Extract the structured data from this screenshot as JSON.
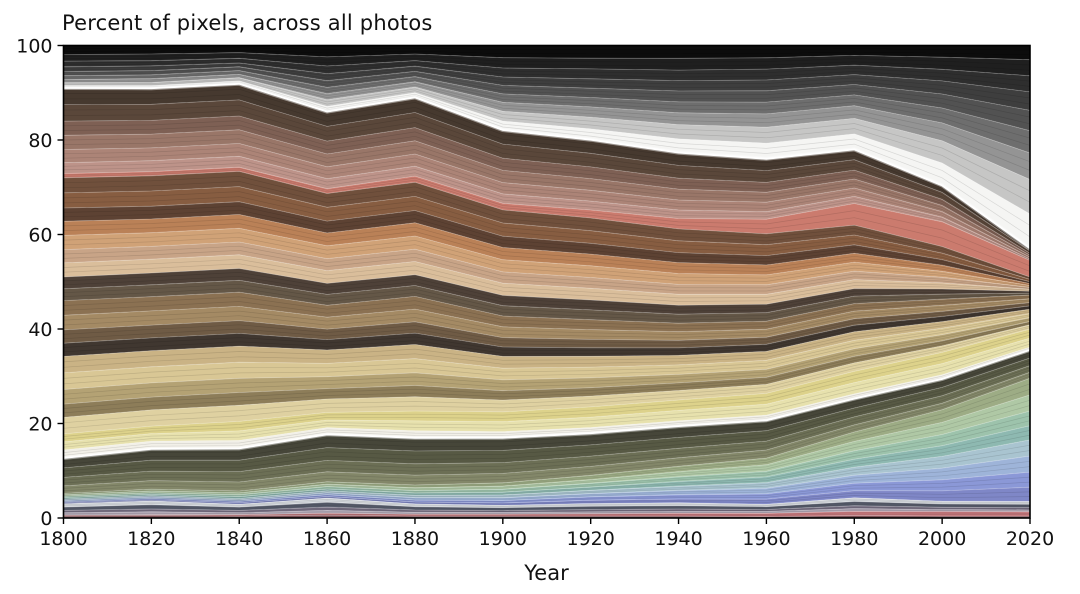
{
  "title": "Percent of pixels, across all photos",
  "x_axis": {
    "label": "Year",
    "ticks": [
      1800,
      1820,
      1840,
      1860,
      1880,
      1900,
      1920,
      1940,
      1960,
      1980,
      2000,
      2020
    ]
  },
  "y_axis": {
    "ticks": [
      0,
      20,
      40,
      60,
      80,
      100
    ],
    "range": [
      0,
      100
    ]
  },
  "chart_data": {
    "type": "area",
    "stacked": true,
    "normalized_to_100": true,
    "title": "Percent of pixels, across all photos",
    "xlabel": "Year",
    "ylabel": "",
    "xlim": [
      1800,
      2020
    ],
    "ylim": [
      0,
      100
    ],
    "grid": false,
    "legend": "none",
    "x": [
      1800,
      1820,
      1840,
      1860,
      1880,
      1900,
      1920,
      1940,
      1960,
      1980,
      2000,
      2020
    ],
    "series_order": "top-to-bottom",
    "series": [
      {
        "name": "black",
        "color": "#0c0c0c",
        "values": [
          1.9,
          1.8,
          1.5,
          2.4,
          1.8,
          2.6,
          2.7,
          2.7,
          2.6,
          2.1,
          2.5,
          3.0
        ]
      },
      {
        "name": "gray-darkest",
        "color": "#1f1f1f",
        "values": [
          1.4,
          1.4,
          1.2,
          1.9,
          1.4,
          2.2,
          2.3,
          2.5,
          2.4,
          2.1,
          2.6,
          3.4
        ]
      },
      {
        "name": "gray-darker",
        "color": "#2e2e2e",
        "values": [
          1.2,
          1.1,
          1.0,
          1.6,
          1.2,
          1.9,
          2.1,
          2.2,
          2.3,
          2.0,
          2.5,
          3.4
        ]
      },
      {
        "name": "gray-dark",
        "color": "#3e3e3e",
        "values": [
          1.0,
          1.0,
          0.8,
          1.5,
          1.1,
          1.8,
          2.0,
          2.2,
          2.3,
          2.1,
          2.8,
          3.9
        ]
      },
      {
        "name": "gray-mid",
        "color": "#525252",
        "values": [
          0.9,
          0.9,
          0.8,
          1.4,
          1.1,
          1.8,
          2.0,
          2.3,
          2.4,
          2.2,
          3.0,
          4.3
        ]
      },
      {
        "name": "gray",
        "color": "#6e6e6e",
        "values": [
          0.8,
          0.8,
          0.8,
          1.3,
          1.1,
          1.8,
          2.0,
          2.3,
          2.5,
          2.3,
          3.2,
          4.7
        ]
      },
      {
        "name": "gray-light",
        "color": "#949494",
        "values": [
          0.7,
          0.8,
          0.7,
          1.3,
          1.1,
          1.9,
          2.2,
          2.5,
          2.8,
          2.7,
          3.8,
          5.6
        ]
      },
      {
        "name": "gray-lighter",
        "color": "#c6c6c5",
        "values": [
          0.6,
          0.7,
          0.7,
          1.4,
          1.2,
          2.1,
          2.5,
          3.0,
          3.4,
          3.3,
          4.8,
          7.3
        ]
      },
      {
        "name": "white-ridge",
        "color": "#f5f5f3",
        "values": [
          0.5,
          0.5,
          0.6,
          1.1,
          1.0,
          1.9,
          2.3,
          2.9,
          3.3,
          3.3,
          4.8,
          7.3
        ]
      },
      {
        "name": "taupe-dark",
        "color": "#46392f",
        "values": [
          3.5,
          3.4,
          3.4,
          3.1,
          3.2,
          3.0,
          2.9,
          2.7,
          2.5,
          2.2,
          1.5,
          0.5
        ]
      },
      {
        "name": "taupe",
        "color": "#5a473a",
        "values": [
          3.5,
          3.4,
          3.4,
          3.1,
          3.2,
          3.0,
          2.9,
          2.7,
          2.5,
          2.2,
          1.5,
          0.5
        ]
      },
      {
        "name": "rose-brown",
        "color": "#7e6054",
        "values": [
          3.0,
          2.9,
          2.9,
          2.7,
          2.8,
          2.6,
          2.5,
          2.3,
          2.1,
          1.9,
          1.3,
          0.4
        ]
      },
      {
        "name": "mauve",
        "color": "#997668",
        "values": [
          3.0,
          2.9,
          2.9,
          2.7,
          2.8,
          2.6,
          2.5,
          2.3,
          2.1,
          1.9,
          1.3,
          0.4
        ]
      },
      {
        "name": "rosy-brown",
        "color": "#ac8477",
        "values": [
          2.8,
          2.7,
          2.7,
          2.5,
          2.6,
          2.4,
          2.3,
          2.1,
          2.0,
          1.8,
          1.2,
          0.4
        ]
      },
      {
        "name": "dusty-pink",
        "color": "#bd9389",
        "values": [
          2.3,
          2.3,
          2.3,
          2.1,
          2.1,
          2.0,
          1.9,
          1.8,
          1.6,
          1.5,
          1.0,
          0.3
        ]
      },
      {
        "name": "salmon-red",
        "color": "#cb7b6e",
        "values": [
          0.9,
          0.9,
          0.9,
          1.0,
          1.3,
          1.4,
          1.7,
          2.2,
          3.1,
          4.6,
          5.3,
          3.5
        ]
      },
      {
        "name": "brown",
        "color": "#70503c",
        "values": [
          3.2,
          3.2,
          3.2,
          2.9,
          3.0,
          2.8,
          2.7,
          2.5,
          2.3,
          2.1,
          1.4,
          0.5
        ]
      },
      {
        "name": "sienna",
        "color": "#875d41",
        "values": [
          3.2,
          3.2,
          3.2,
          2.9,
          3.0,
          2.8,
          2.7,
          2.5,
          2.3,
          2.1,
          1.4,
          0.5
        ]
      },
      {
        "name": "brown-dark",
        "color": "#5d4233",
        "values": [
          2.8,
          2.7,
          2.7,
          2.5,
          2.6,
          2.4,
          2.3,
          2.1,
          2.0,
          1.8,
          1.2,
          0.4
        ]
      },
      {
        "name": "orange-tan",
        "color": "#ba8157",
        "values": [
          3.0,
          2.9,
          2.9,
          2.7,
          2.8,
          2.6,
          2.5,
          2.3,
          2.1,
          1.9,
          1.3,
          0.4
        ]
      },
      {
        "name": "peach",
        "color": "#d0a277",
        "values": [
          3.0,
          2.9,
          2.9,
          2.7,
          2.8,
          2.6,
          2.5,
          2.3,
          2.1,
          1.9,
          1.3,
          0.4
        ]
      },
      {
        "name": "buff",
        "color": "#c8a487",
        "values": [
          2.8,
          2.7,
          2.7,
          2.5,
          2.6,
          2.4,
          2.3,
          2.1,
          2.0,
          1.8,
          1.2,
          0.4
        ]
      },
      {
        "name": "pale-tan",
        "color": "#dabe9b",
        "values": [
          3.0,
          2.9,
          2.9,
          2.7,
          2.8,
          2.6,
          2.5,
          2.3,
          2.1,
          1.9,
          1.3,
          0.4
        ]
      },
      {
        "name": "umber-dark",
        "color": "#4e4138",
        "values": [
          2.5,
          2.5,
          2.5,
          2.3,
          2.3,
          2.2,
          2.1,
          1.9,
          1.8,
          1.6,
          1.1,
          0.4
        ]
      },
      {
        "name": "gray-brown",
        "color": "#645747",
        "values": [
          2.5,
          2.5,
          2.5,
          2.3,
          2.3,
          2.2,
          2.1,
          1.9,
          1.8,
          1.6,
          1.1,
          0.4
        ]
      },
      {
        "name": "tan-brown",
        "color": "#8b7152",
        "values": [
          3.1,
          3.0,
          3.0,
          2.5,
          2.7,
          2.3,
          2.1,
          1.8,
          1.7,
          1.6,
          1.3,
          0.8
        ]
      },
      {
        "name": "camel",
        "color": "#a48a64",
        "values": [
          3.1,
          3.0,
          3.0,
          2.5,
          2.7,
          2.3,
          2.1,
          1.8,
          1.7,
          1.6,
          1.3,
          0.8
        ]
      },
      {
        "name": "drab-brown",
        "color": "#6f5b45",
        "values": [
          2.8,
          2.7,
          2.7,
          2.2,
          2.4,
          2.0,
          1.8,
          1.6,
          1.5,
          1.4,
          1.1,
          0.7
        ]
      },
      {
        "name": "chocolate-dark",
        "color": "#403730",
        "values": [
          2.8,
          2.7,
          2.7,
          2.2,
          2.4,
          2.0,
          1.8,
          1.6,
          1.5,
          1.4,
          1.1,
          0.7
        ]
      },
      {
        "name": "khaki",
        "color": "#cab385",
        "values": [
          3.5,
          3.4,
          3.4,
          2.8,
          3.0,
          2.5,
          2.3,
          2.0,
          1.9,
          1.8,
          1.4,
          0.9
        ]
      },
      {
        "name": "sand",
        "color": "#d9c795",
        "values": [
          3.5,
          3.4,
          3.4,
          2.8,
          3.0,
          2.5,
          2.3,
          2.0,
          1.9,
          1.8,
          1.4,
          0.9
        ]
      },
      {
        "name": "khaki-dark",
        "color": "#b4a274",
        "values": [
          3.1,
          3.0,
          3.0,
          2.5,
          2.7,
          2.3,
          2.1,
          1.8,
          1.7,
          1.6,
          1.3,
          0.8
        ]
      },
      {
        "name": "olive-tan",
        "color": "#8d7d59",
        "values": [
          2.8,
          2.7,
          2.7,
          2.2,
          2.4,
          2.0,
          1.8,
          1.6,
          1.5,
          1.4,
          1.1,
          0.7
        ]
      },
      {
        "name": "cream-khaki",
        "color": "#dfd1a1",
        "values": [
          3.5,
          3.4,
          3.4,
          2.8,
          3.0,
          2.5,
          2.3,
          2.0,
          1.9,
          1.8,
          1.4,
          0.9
        ]
      },
      {
        "name": "yellow",
        "color": "#ddd28b",
        "values": [
          1.7,
          1.6,
          2.0,
          1.6,
          2.1,
          2.1,
          2.2,
          2.2,
          2.3,
          2.4,
          2.4,
          1.9
        ]
      },
      {
        "name": "pale-yellow",
        "color": "#e7e1ad",
        "values": [
          1.7,
          1.6,
          2.0,
          1.6,
          2.1,
          2.1,
          2.2,
          2.2,
          2.3,
          2.4,
          2.4,
          1.9
        ]
      },
      {
        "name": "cream-ridge",
        "color": "#f2f0e8",
        "values": [
          1.7,
          1.6,
          1.7,
          1.4,
          1.5,
          1.3,
          1.2,
          1.1,
          1.1,
          1.0,
          0.9,
          0.6
        ]
      },
      {
        "name": "olive-darkest",
        "color": "#464639",
        "values": [
          2.1,
          2.4,
          2.5,
          2.8,
          2.8,
          2.7,
          2.5,
          2.4,
          2.2,
          2.0,
          1.8,
          1.7
        ]
      },
      {
        "name": "olive-dark",
        "color": "#575944",
        "values": [
          2.0,
          2.3,
          2.4,
          2.7,
          2.7,
          2.6,
          2.4,
          2.3,
          2.2,
          1.9,
          1.8,
          1.6
        ]
      },
      {
        "name": "olive",
        "color": "#6c6f55",
        "values": [
          1.8,
          2.0,
          2.2,
          2.4,
          2.4,
          2.3,
          2.2,
          2.0,
          1.9,
          1.7,
          1.6,
          1.4
        ]
      },
      {
        "name": "olive-light",
        "color": "#838769",
        "values": [
          1.6,
          1.8,
          1.9,
          2.1,
          2.1,
          2.0,
          1.9,
          1.8,
          1.7,
          1.5,
          1.4,
          1.3
        ]
      },
      {
        "name": "sage",
        "color": "#9dac85",
        "values": [
          0.3,
          0.4,
          0.4,
          0.5,
          0.6,
          0.7,
          0.9,
          1.1,
          1.4,
          2.0,
          2.7,
          3.5
        ]
      },
      {
        "name": "mint",
        "color": "#afc8a5",
        "values": [
          0.3,
          0.4,
          0.4,
          0.5,
          0.6,
          0.7,
          0.8,
          1.1,
          1.4,
          2.0,
          2.6,
          3.4
        ]
      },
      {
        "name": "seafoam",
        "color": "#9dc3ac",
        "values": [
          0.3,
          0.3,
          0.4,
          0.5,
          0.5,
          0.6,
          0.8,
          1.0,
          1.2,
          1.8,
          2.4,
          3.1
        ]
      },
      {
        "name": "teal-gray",
        "color": "#8eb9b1",
        "values": [
          0.3,
          0.3,
          0.4,
          0.4,
          0.5,
          0.6,
          0.7,
          1.0,
          1.2,
          1.7,
          2.3,
          3.0
        ]
      },
      {
        "name": "light-cyan",
        "color": "#a9c4d0",
        "values": [
          0.3,
          0.3,
          0.3,
          0.4,
          0.5,
          0.6,
          0.7,
          0.9,
          1.2,
          1.7,
          2.5,
          3.4
        ]
      },
      {
        "name": "sky-blue",
        "color": "#9eb4d9",
        "values": [
          0.3,
          0.3,
          0.3,
          0.4,
          0.5,
          0.6,
          0.7,
          0.9,
          1.2,
          1.7,
          2.5,
          3.4
        ]
      },
      {
        "name": "periwinkle",
        "color": "#8b98d7",
        "values": [
          0.2,
          0.3,
          0.3,
          0.4,
          0.4,
          0.5,
          0.7,
          0.9,
          1.1,
          1.6,
          2.4,
          3.2
        ]
      },
      {
        "name": "blue-violet",
        "color": "#7f87c7",
        "values": [
          0.2,
          0.2,
          0.3,
          0.3,
          0.4,
          0.5,
          0.7,
          0.8,
          1.1,
          1.5,
          2.2,
          3.0
        ]
      },
      {
        "name": "pale-steel",
        "color": "#d9dde2",
        "values": [
          0.7,
          0.8,
          0.6,
          0.9,
          0.6,
          0.5,
          0.6,
          0.6,
          0.5,
          0.8,
          0.6,
          0.6
        ]
      },
      {
        "name": "slate-dark",
        "color": "#575c6b",
        "values": [
          0.7,
          0.9,
          0.7,
          1.0,
          0.7,
          0.6,
          0.7,
          0.7,
          0.6,
          0.9,
          0.7,
          0.7
        ]
      },
      {
        "name": "slate-violet",
        "color": "#787084",
        "values": [
          0.5,
          0.6,
          0.5,
          0.7,
          0.5,
          0.4,
          0.5,
          0.5,
          0.4,
          0.6,
          0.5,
          0.5
        ]
      },
      {
        "name": "lavender-gray",
        "color": "#b4aab9",
        "values": [
          0.5,
          0.6,
          0.4,
          0.6,
          0.4,
          0.4,
          0.4,
          0.4,
          0.4,
          0.6,
          0.4,
          0.4
        ]
      },
      {
        "name": "bottom-red",
        "color": "#c5777b",
        "values": [
          0.2,
          0.2,
          0.3,
          0.4,
          0.4,
          0.4,
          0.5,
          0.6,
          0.7,
          0.9,
          1.0,
          0.9
        ]
      },
      {
        "name": "dark-rose",
        "color": "#8c5b61",
        "values": [
          0.4,
          0.5,
          0.4,
          0.6,
          0.4,
          0.4,
          0.4,
          0.4,
          0.3,
          0.5,
          0.4,
          0.4
        ]
      }
    ]
  },
  "colors": {
    "axis": "#000000",
    "text": "#111111",
    "background": "#ffffff"
  }
}
